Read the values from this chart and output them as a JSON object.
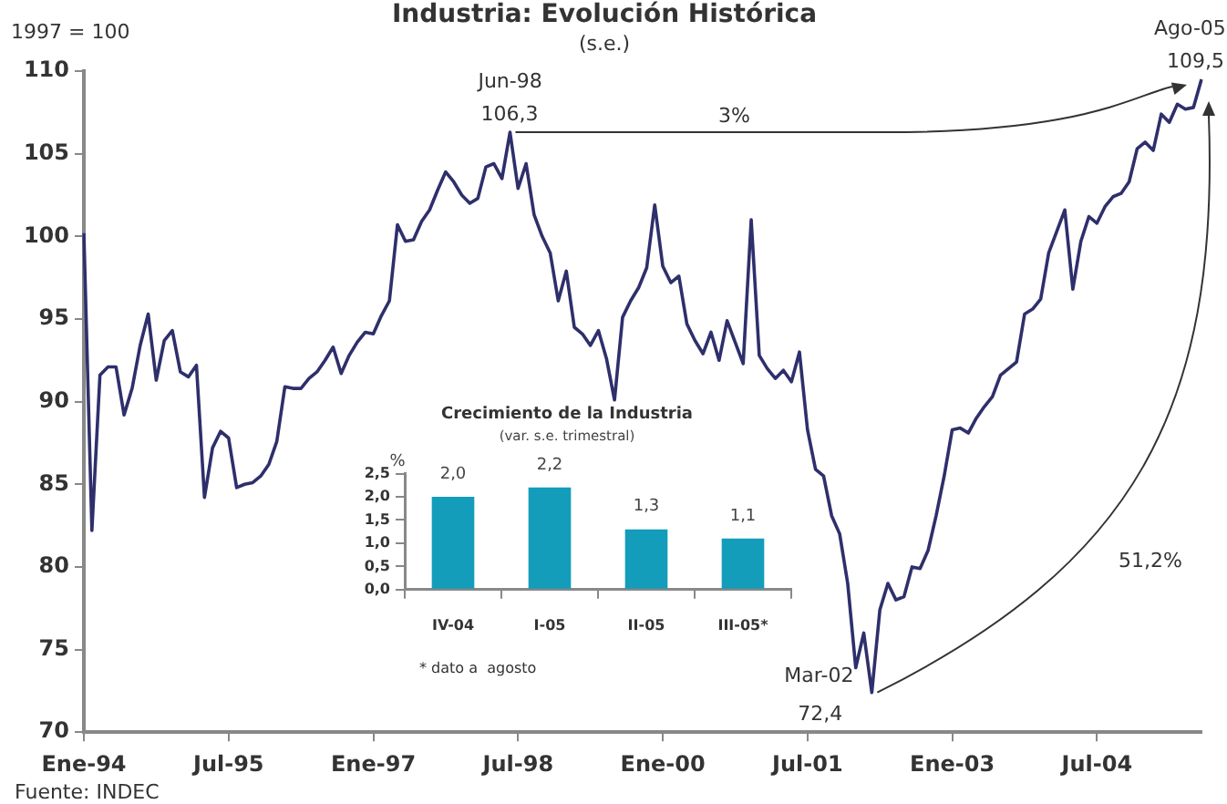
{
  "chart_data": [
    {
      "type": "line",
      "title": "Industria: Evolución Histórica",
      "subtitle": "(s.e.)",
      "categories": [
        "Ene-94",
        null,
        null,
        null,
        null,
        null,
        null,
        null,
        null,
        null,
        null,
        null,
        null,
        null,
        null,
        null,
        null,
        null,
        "Jul-95",
        null,
        null,
        null,
        null,
        null,
        null,
        null,
        null,
        null,
        null,
        null,
        null,
        null,
        null,
        null,
        null,
        null,
        "Ene-97",
        null,
        null,
        null,
        null,
        null,
        null,
        null,
        null,
        null,
        null,
        null,
        null,
        null,
        null,
        null,
        null,
        null,
        "Jul-98",
        null,
        null,
        null,
        null,
        null,
        null,
        null,
        null,
        null,
        null,
        null,
        null,
        null,
        null,
        null,
        null,
        null,
        "Ene-00",
        null,
        null,
        null,
        null,
        null,
        null,
        null,
        null,
        null,
        null,
        null,
        null,
        null,
        null,
        null,
        null,
        null,
        "Jul-01",
        null,
        null,
        null,
        null,
        null,
        null,
        null,
        null,
        null,
        null,
        null,
        null,
        null,
        null,
        null,
        null,
        null,
        "Ene-03",
        null,
        null,
        null,
        null,
        null,
        null,
        null,
        null,
        null,
        null,
        null,
        null,
        null,
        null,
        null,
        null,
        null,
        "Jul-04",
        null,
        null,
        null,
        null,
        null,
        null,
        null,
        null,
        null,
        null,
        null,
        null,
        null
      ],
      "values": [
        100.2,
        82.2,
        91.6,
        92.1,
        92.1,
        89.2,
        90.8,
        93.4,
        95.3,
        91.3,
        93.7,
        94.3,
        91.8,
        91.5,
        92.2,
        84.2,
        87.2,
        88.2,
        87.8,
        84.8,
        85.0,
        85.1,
        85.5,
        86.2,
        87.6,
        90.9,
        90.8,
        90.8,
        91.4,
        91.8,
        92.5,
        93.3,
        91.7,
        92.8,
        93.6,
        94.2,
        94.1,
        95.2,
        96.1,
        100.7,
        99.7,
        99.8,
        100.9,
        101.6,
        102.8,
        103.9,
        103.3,
        102.5,
        102.0,
        102.3,
        104.2,
        104.4,
        103.5,
        106.3,
        102.9,
        104.4,
        101.3,
        100.0,
        99.0,
        96.1,
        97.9,
        94.5,
        94.1,
        93.4,
        94.3,
        92.6,
        90.1,
        95.1,
        96.1,
        96.9,
        98.1,
        101.9,
        98.2,
        97.2,
        97.6,
        94.7,
        93.7,
        92.9,
        94.2,
        92.5,
        94.9,
        93.6,
        92.3,
        101.0,
        92.8,
        92.0,
        91.4,
        91.9,
        91.2,
        93.0,
        88.3,
        85.9,
        85.5,
        83.1,
        82.0,
        79.0,
        73.9,
        76.0,
        72.4,
        77.4,
        79.0,
        78.0,
        78.2,
        80.0,
        79.9,
        81.0,
        83.1,
        85.5,
        88.3,
        88.4,
        88.1,
        89.0,
        89.7,
        90.3,
        91.6,
        92.0,
        92.4,
        95.3,
        95.6,
        96.2,
        99.0,
        100.3,
        101.6,
        96.8,
        99.7,
        101.2,
        100.8,
        101.8,
        102.4,
        102.6,
        103.3,
        105.3,
        105.7,
        105.2,
        107.4,
        106.9,
        108.0,
        107.7,
        107.8,
        109.5
      ],
      "color": "#2e2f6b",
      "marker": "none",
      "ylim": [
        70,
        110
      ],
      "yticks": [
        70,
        75,
        80,
        85,
        90,
        95,
        100,
        105,
        110
      ],
      "annotations": [
        "1997 = 100",
        "3%",
        "51,2%",
        "Fuente: INDEC",
        "Jun-98",
        "106,3",
        "Mar-02",
        "72,4",
        "Ago-05",
        "109,5"
      ]
    },
    {
      "type": "bar",
      "title": "Crecimiento de la Industria",
      "subtitle": "(var. s.e. trimestral)",
      "ylabel": "%",
      "categories": [
        "IV-04",
        "I-05",
        "II-05",
        "III-05*"
      ],
      "values": [
        2.0,
        2.2,
        1.3,
        1.1
      ],
      "color": "#139dba",
      "value_labels": [
        "2,0",
        "2,2",
        "1,3",
        "1,1"
      ],
      "ylim": [
        0,
        2.5
      ],
      "yticks": [
        {
          "value": 0,
          "label": "0,0"
        },
        {
          "value": 0.5,
          "label": "0,5"
        },
        {
          "value": 1,
          "label": "1,0"
        },
        {
          "value": 1.5,
          "label": "1,5"
        },
        {
          "value": 2,
          "label": "2,0"
        },
        {
          "value": 2.5,
          "label": "2,5"
        }
      ],
      "annotations": [
        "* dato a  agosto"
      ]
    }
  ]
}
